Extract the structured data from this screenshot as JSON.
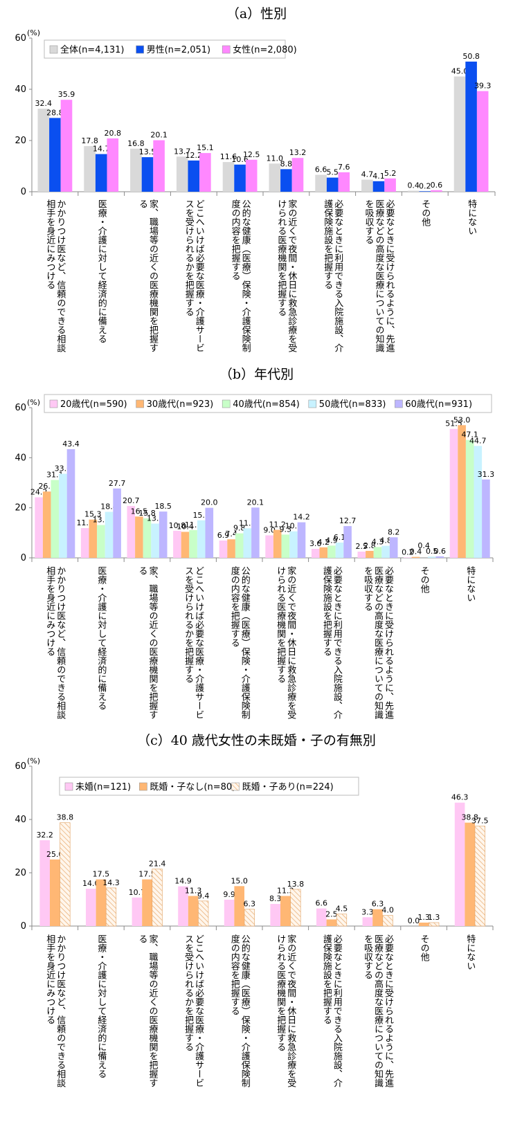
{
  "categories": [
    "かかりつけ医など、信頼のできる相談相手を身近にみつける",
    "医療・介護に対して経済的に備える",
    "家、職場等の近くの医療機関を把握する",
    "どこへいけば必要な医療・介護サービスを受けられるかを把握する",
    "公的な健康（医療）保険・介護保険制度の内容を把握する",
    "家の近くで夜間・休日に救急診療を受けられる医療機関を把握する",
    "必要なときに利用できる入院施設、介護保険施設を把握する",
    "必要なときに受けられるように、先進医療などの高度な医療についての知識を吸収する",
    "その他",
    "特にない"
  ],
  "colors": {
    "all": "#d9d9d9",
    "male": "#0a4ff0",
    "female": "#ff88ff",
    "age20": "#ffc8f4",
    "age30": "#ffb774",
    "age40": "#c8ffc8",
    "age50": "#c8f2ff",
    "age60": "#bdb6ff",
    "unmarried": "#ffc8f4",
    "married_nochild": "#ffb774",
    "married_child": "#fff0e0"
  },
  "chart_data": [
    {
      "type": "bar",
      "title": "（a）性別",
      "ylabel": "(%)",
      "ylim": [
        0,
        60
      ],
      "yticks": [
        0,
        20,
        40,
        60
      ],
      "legend_position": "top-left",
      "series": [
        {
          "name": "全体(n=4,131)",
          "values": [
            32.4,
            17.8,
            16.8,
            13.7,
            11.6,
            11.0,
            6.6,
            4.7,
            0.4,
            45.0
          ],
          "labels": [
            "32.4",
            "17.8",
            "16.8",
            "13.7",
            "11.6",
            "11.0",
            "6.6",
            "4.7",
            "0.4",
            "45.0"
          ],
          "color": "#d9d9d9",
          "pattern": "solid"
        },
        {
          "name": "男性(n=2,051)",
          "values": [
            28.8,
            14.7,
            13.5,
            12.2,
            10.6,
            8.8,
            5.5,
            4.1,
            0.2,
            50.8
          ],
          "labels": [
            "28.8",
            "14.7",
            "13.5",
            "12.2",
            "10.6",
            "8.8",
            "5.5",
            "4.1",
            "0.2",
            "50.8"
          ],
          "color": "#0a4ff0",
          "pattern": "solid"
        },
        {
          "name": "女性(n=2,080)",
          "values": [
            35.9,
            20.8,
            20.1,
            15.1,
            12.5,
            13.2,
            7.6,
            5.2,
            0.6,
            39.3
          ],
          "labels": [
            "35.9",
            "20.8",
            "20.1",
            "15.1",
            "12.5",
            "13.2",
            "7.6",
            "5.2",
            "0.6",
            "39.3"
          ],
          "color": "#ff88ff",
          "pattern": "solid"
        }
      ]
    },
    {
      "type": "bar",
      "title": "（b）年代別",
      "ylabel": "(%)",
      "ylim": [
        0,
        60
      ],
      "yticks": [
        0,
        20,
        40,
        60
      ],
      "legend_position": "top",
      "series": [
        {
          "name": "20歳代(n=590)",
          "values": [
            24.2,
            11.9,
            20.7,
            10.8,
            6.9,
            9.0,
            3.6,
            2.5,
            0.2,
            51.5
          ],
          "labels": [
            "24.2",
            "11.9",
            "20.7",
            "10.8",
            "6.9",
            "9.0",
            "3.6",
            "2.5",
            "0.2",
            "51.5"
          ],
          "color": "#ffc8f4",
          "pattern": "solid"
        },
        {
          "name": "30歳代(n=923)",
          "values": [
            26.5,
            15.3,
            16.5,
            10.4,
            7.4,
            11.2,
            4.2,
            2.8,
            0.4,
            53.0
          ],
          "labels": [
            "26.5",
            "15.3",
            "16.5",
            "10.4",
            "7.4",
            "11.2",
            "4.2",
            "2.8",
            "0.4",
            "53.0"
          ],
          "color": "#ffb774",
          "pattern": "solid"
        },
        {
          "name": "40歳代(n=854)",
          "values": [
            31.1,
            13.1,
            15.8,
            11.1,
            9.8,
            9.3,
            4.9,
            4.3,
            0.0,
            47.1
          ],
          "labels": [
            "31.1",
            "13.1",
            "15.8",
            "11.1",
            "9.8",
            "9.3",
            "4.9",
            "4.3",
            "",
            "47.1"
          ],
          "color": "#c8ffc8",
          "pattern": "solid"
        },
        {
          "name": "50歳代(n=833)",
          "values": [
            33.6,
            18.4,
            13.7,
            15.0,
            11.8,
            10.6,
            6.1,
            4.8,
            0.5,
            44.7
          ],
          "labels": [
            "33.6",
            "18.4",
            "13.7",
            "15.0",
            "11.8",
            "10.6",
            "6.1",
            "4.8",
            "0.5",
            "44.7"
          ],
          "color": "#c8f2ff",
          "pattern": "solid"
        },
        {
          "name": "60歳代(n=931)",
          "values": [
            43.4,
            27.7,
            18.5,
            20.0,
            20.1,
            14.2,
            12.7,
            8.2,
            0.6,
            31.3
          ],
          "labels": [
            "43.4",
            "27.7",
            "18.5",
            "20.0",
            "20.1",
            "14.2",
            "12.7",
            "8.2",
            "0.6",
            "31.3"
          ],
          "color": "#bdb6ff",
          "pattern": "solid"
        }
      ],
      "extra_labels": [
        {
          "category_index": 8,
          "text": "0.4"
        }
      ]
    },
    {
      "type": "bar",
      "title": "（c）40 歳代女性の未既婚・子の有無別",
      "ylabel": "(%)",
      "ylim": [
        0,
        60
      ],
      "yticks": [
        0,
        20,
        40,
        60
      ],
      "legend_position": "top-left",
      "series": [
        {
          "name": "未婚(n=121)",
          "values": [
            32.2,
            14.0,
            10.7,
            14.9,
            9.9,
            8.3,
            6.6,
            3.3,
            0.0,
            46.3
          ],
          "labels": [
            "32.2",
            "14.0",
            "10.7",
            "14.9",
            "9.9",
            "8.3",
            "6.6",
            "3.3",
            "0.0",
            "46.3"
          ],
          "color": "#ffc8f4",
          "pattern": "solid"
        },
        {
          "name": "既婚・子なし(n=80)",
          "values": [
            25.0,
            17.5,
            17.5,
            11.3,
            15.0,
            11.3,
            2.5,
            6.3,
            1.3,
            38.8
          ],
          "labels": [
            "25.0",
            "17.5",
            "17.5",
            "11.3",
            "15.0",
            "11.3",
            "2.5",
            "6.3",
            "1.3",
            "38.8"
          ],
          "color": "#ffb774",
          "pattern": "solid"
        },
        {
          "name": "既婚・子あり(n=224)",
          "values": [
            38.8,
            14.3,
            21.4,
            9.4,
            6.3,
            13.8,
            4.5,
            4.0,
            1.3,
            37.5
          ],
          "labels": [
            "38.8",
            "14.3",
            "21.4",
            "9.4",
            "6.3",
            "13.8",
            "4.5",
            "4.0",
            "1.3",
            "37.5"
          ],
          "color": "#fff0e0",
          "pattern": "hatch"
        }
      ]
    }
  ]
}
